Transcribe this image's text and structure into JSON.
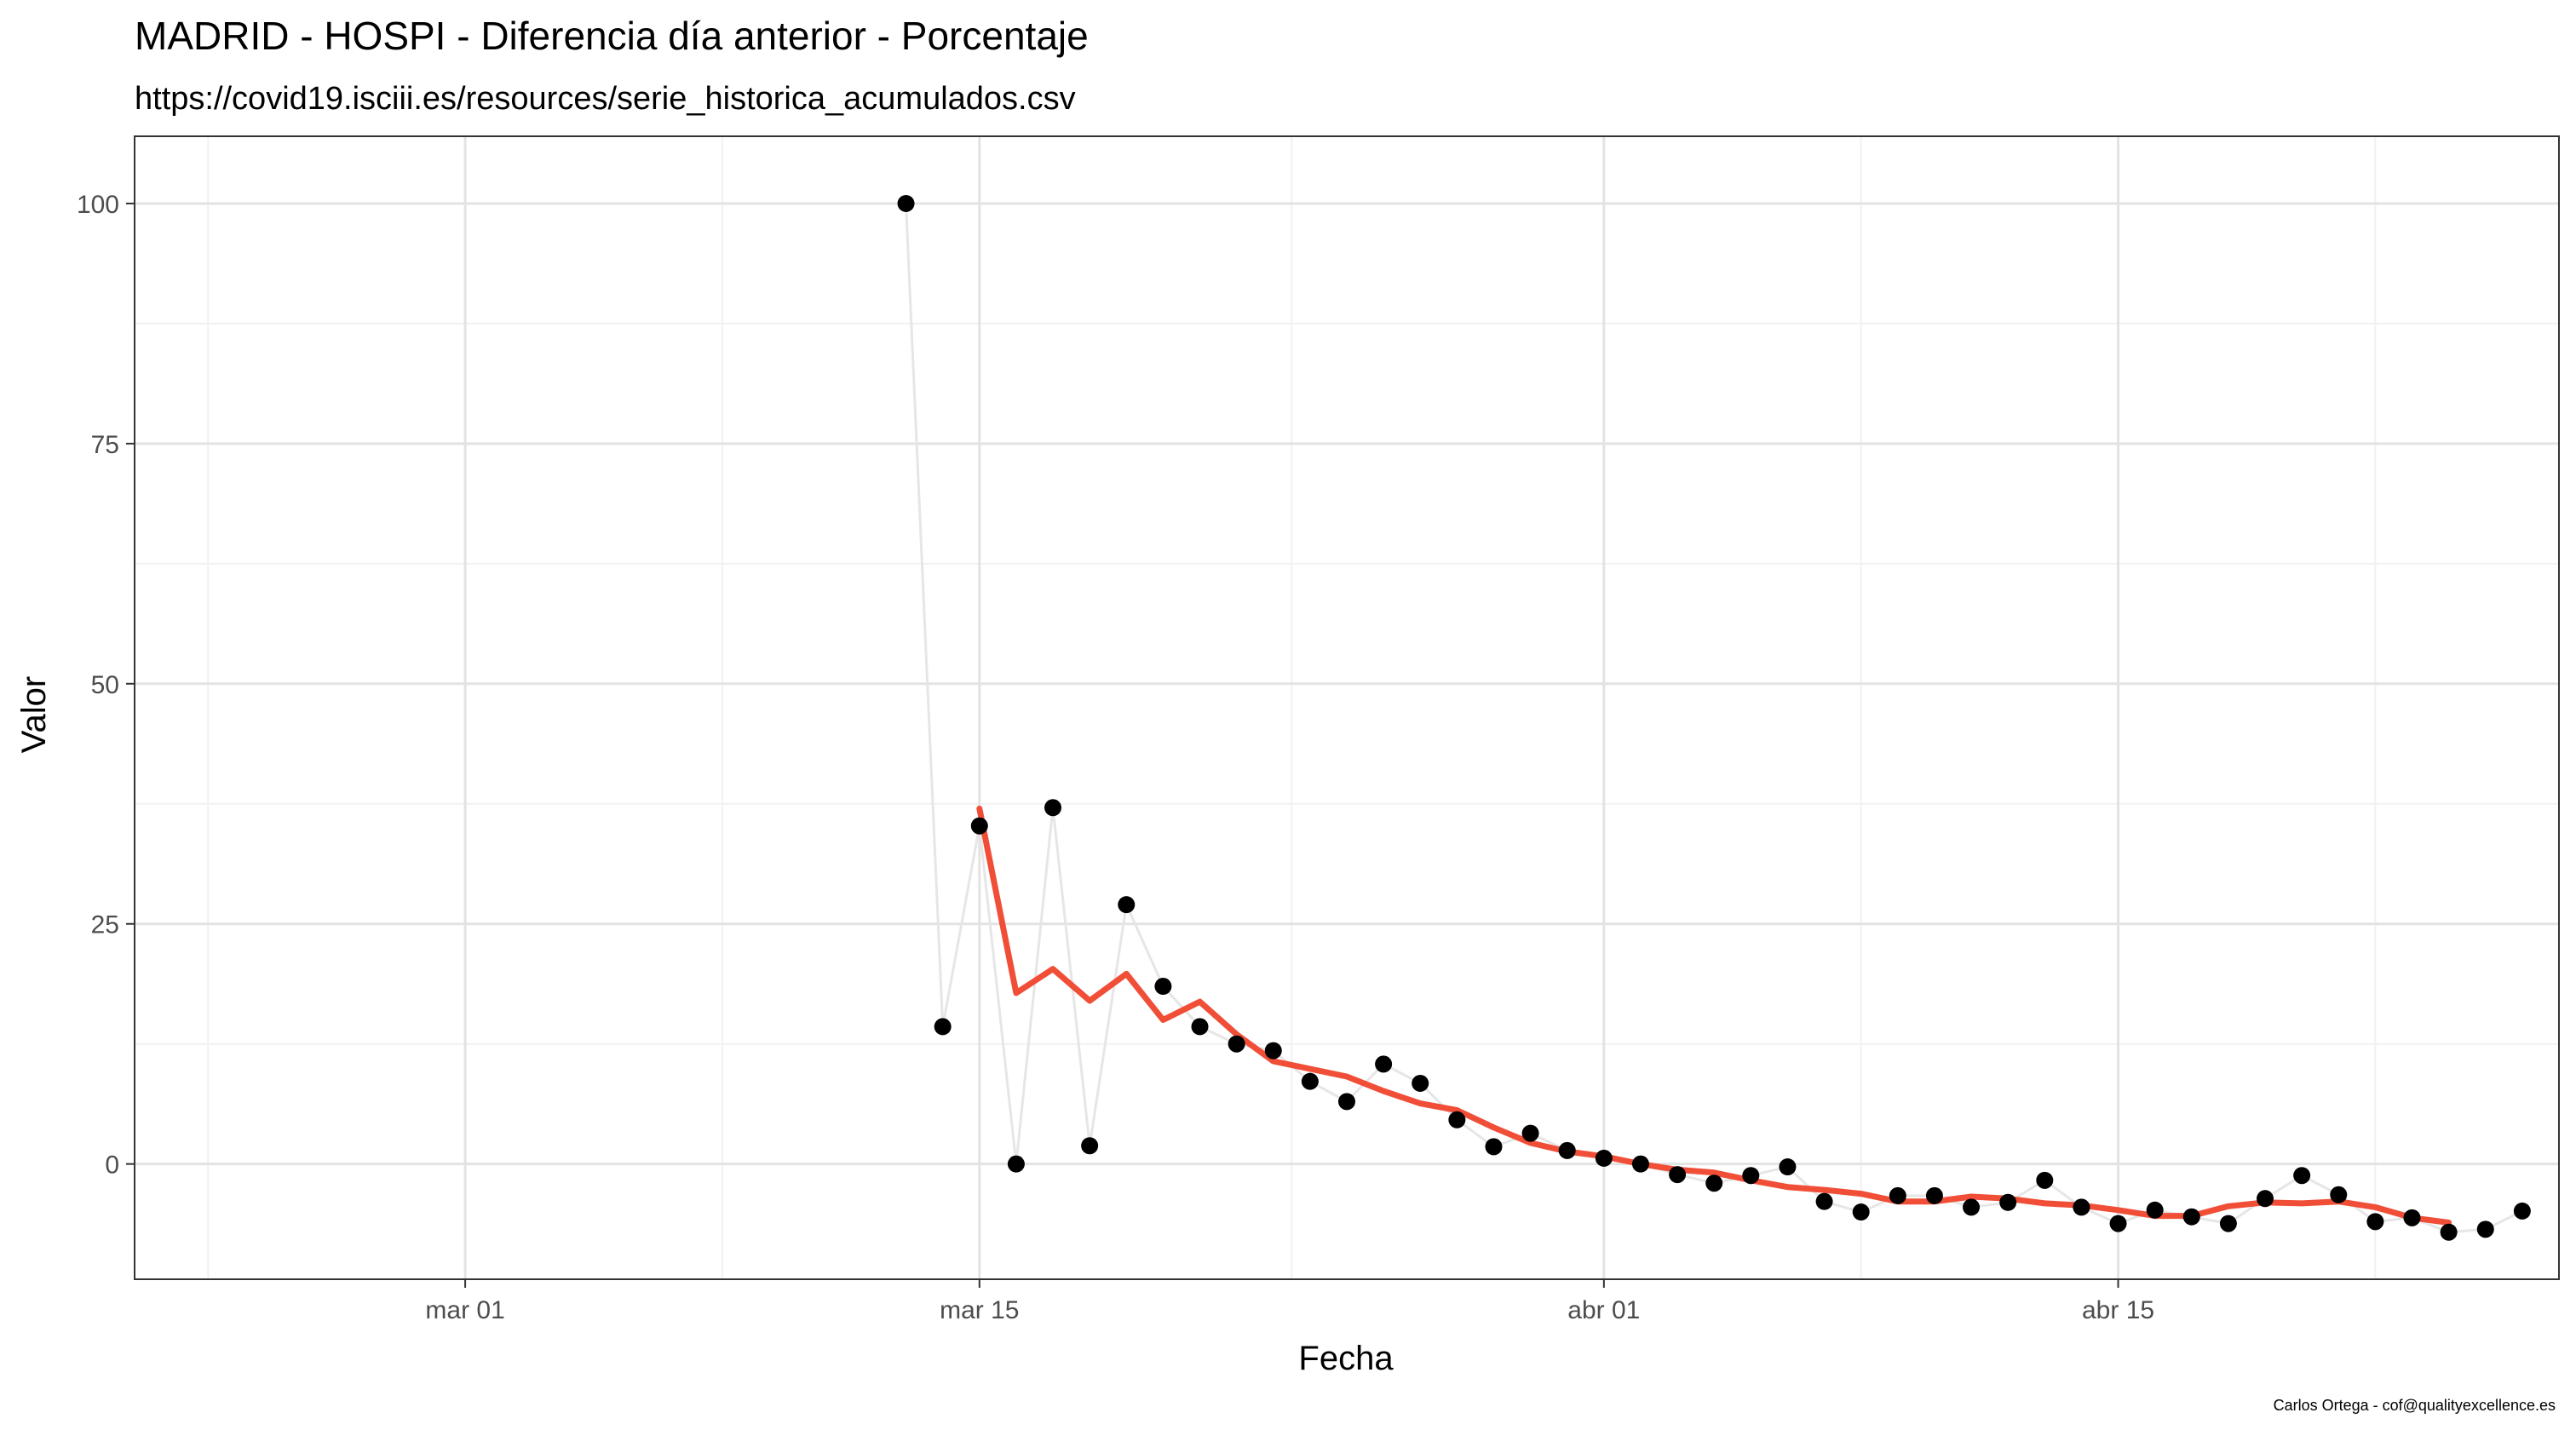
{
  "chart_data": {
    "type": "scatter",
    "title": "MADRID - HOSPI - Diferencia día anterior - Porcentaje",
    "subtitle": "https://covid19.isciii.es/resources/serie_historica_acumulados.csv",
    "xlabel": "Fecha",
    "ylabel": "Valor",
    "caption": "Carlos Ortega - cof@qualityexcellence.es",
    "x_axis": {
      "type": "date",
      "range": [
        "2020-02-21",
        "2020-04-27"
      ],
      "ticks": [
        {
          "date": "2020-03-01",
          "label": "mar 01"
        },
        {
          "date": "2020-03-15",
          "label": "mar 15"
        },
        {
          "date": "2020-04-01",
          "label": "abr 01"
        },
        {
          "date": "2020-04-15",
          "label": "abr 15"
        }
      ]
    },
    "y_axis": {
      "range": [
        -12,
        107
      ],
      "ticks": [
        0,
        25,
        50,
        75,
        100
      ]
    },
    "grid": true,
    "colors": {
      "points": "#000000",
      "connecting_line": "#e6e6e6",
      "smooth_line": "#f04e37",
      "grid_major": "#e3e3e3",
      "grid_minor": "#f1f1f1",
      "panel_border": "#333333"
    },
    "series": [
      {
        "role": "points",
        "points": [
          {
            "x": "2020-03-13",
            "y": 100
          },
          {
            "x": "2020-03-14",
            "y": 14.3
          },
          {
            "x": "2020-03-15",
            "y": 35.2
          },
          {
            "x": "2020-03-16",
            "y": 0
          },
          {
            "x": "2020-03-17",
            "y": 37.1
          },
          {
            "x": "2020-03-18",
            "y": 1.9
          },
          {
            "x": "2020-03-19",
            "y": 27.0
          },
          {
            "x": "2020-03-20",
            "y": 18.5
          },
          {
            "x": "2020-03-21",
            "y": 14.3
          },
          {
            "x": "2020-03-22",
            "y": 12.5
          },
          {
            "x": "2020-03-23",
            "y": 11.8
          },
          {
            "x": "2020-03-24",
            "y": 8.6
          },
          {
            "x": "2020-03-25",
            "y": 6.5
          },
          {
            "x": "2020-03-26",
            "y": 10.4
          },
          {
            "x": "2020-03-27",
            "y": 8.4
          },
          {
            "x": "2020-03-28",
            "y": 4.6
          },
          {
            "x": "2020-03-29",
            "y": 1.8
          },
          {
            "x": "2020-03-30",
            "y": 3.2
          },
          {
            "x": "2020-03-31",
            "y": 1.4
          },
          {
            "x": "2020-04-01",
            "y": 0.6
          },
          {
            "x": "2020-04-02",
            "y": 0
          },
          {
            "x": "2020-04-03",
            "y": -1.1
          },
          {
            "x": "2020-04-04",
            "y": -2.0
          },
          {
            "x": "2020-04-05",
            "y": -1.2
          },
          {
            "x": "2020-04-06",
            "y": -0.3
          },
          {
            "x": "2020-04-07",
            "y": -3.9
          },
          {
            "x": "2020-04-08",
            "y": -5.0
          },
          {
            "x": "2020-04-09",
            "y": -3.3
          },
          {
            "x": "2020-04-10",
            "y": -3.3
          },
          {
            "x": "2020-04-11",
            "y": -4.5
          },
          {
            "x": "2020-04-12",
            "y": -4.0
          },
          {
            "x": "2020-04-13",
            "y": -1.7
          },
          {
            "x": "2020-04-14",
            "y": -4.5
          },
          {
            "x": "2020-04-15",
            "y": -6.2
          },
          {
            "x": "2020-04-16",
            "y": -4.8
          },
          {
            "x": "2020-04-17",
            "y": -5.5
          },
          {
            "x": "2020-04-18",
            "y": -6.2
          },
          {
            "x": "2020-04-19",
            "y": -3.6
          },
          {
            "x": "2020-04-20",
            "y": -1.2
          },
          {
            "x": "2020-04-21",
            "y": -3.2
          },
          {
            "x": "2020-04-22",
            "y": -6.0
          },
          {
            "x": "2020-04-23",
            "y": -5.6
          },
          {
            "x": "2020-04-24",
            "y": -7.1
          },
          {
            "x": "2020-04-25",
            "y": -6.8
          },
          {
            "x": "2020-04-26",
            "y": -4.9
          }
        ]
      },
      {
        "role": "smoothed",
        "points": [
          {
            "x": "2020-03-15",
            "y": 37.0
          },
          {
            "x": "2020-03-16",
            "y": 17.8
          },
          {
            "x": "2020-03-17",
            "y": 20.3
          },
          {
            "x": "2020-03-18",
            "y": 17.0
          },
          {
            "x": "2020-03-19",
            "y": 19.8
          },
          {
            "x": "2020-03-20",
            "y": 15.0
          },
          {
            "x": "2020-03-21",
            "y": 16.9
          },
          {
            "x": "2020-03-22",
            "y": 13.5
          },
          {
            "x": "2020-03-23",
            "y": 10.7
          },
          {
            "x": "2020-03-24",
            "y": 9.9
          },
          {
            "x": "2020-03-25",
            "y": 9.1
          },
          {
            "x": "2020-03-26",
            "y": 7.6
          },
          {
            "x": "2020-03-27",
            "y": 6.3
          },
          {
            "x": "2020-03-28",
            "y": 5.6
          },
          {
            "x": "2020-03-29",
            "y": 3.8
          },
          {
            "x": "2020-03-30",
            "y": 2.2
          },
          {
            "x": "2020-03-31",
            "y": 1.3
          },
          {
            "x": "2020-04-01",
            "y": 0.8
          },
          {
            "x": "2020-04-02",
            "y": 0.0
          },
          {
            "x": "2020-04-03",
            "y": -0.6
          },
          {
            "x": "2020-04-04",
            "y": -0.9
          },
          {
            "x": "2020-04-05",
            "y": -1.7
          },
          {
            "x": "2020-04-06",
            "y": -2.4
          },
          {
            "x": "2020-04-07",
            "y": -2.7
          },
          {
            "x": "2020-04-08",
            "y": -3.1
          },
          {
            "x": "2020-04-09",
            "y": -3.9
          },
          {
            "x": "2020-04-10",
            "y": -3.9
          },
          {
            "x": "2020-04-11",
            "y": -3.4
          },
          {
            "x": "2020-04-12",
            "y": -3.6
          },
          {
            "x": "2020-04-13",
            "y": -4.1
          },
          {
            "x": "2020-04-14",
            "y": -4.3
          },
          {
            "x": "2020-04-15",
            "y": -4.8
          },
          {
            "x": "2020-04-16",
            "y": -5.4
          },
          {
            "x": "2020-04-17",
            "y": -5.4
          },
          {
            "x": "2020-04-18",
            "y": -4.4
          },
          {
            "x": "2020-04-19",
            "y": -4.0
          },
          {
            "x": "2020-04-20",
            "y": -4.1
          },
          {
            "x": "2020-04-21",
            "y": -3.9
          },
          {
            "x": "2020-04-22",
            "y": -4.5
          },
          {
            "x": "2020-04-23",
            "y": -5.6
          },
          {
            "x": "2020-04-24",
            "y": -6.1
          }
        ]
      }
    ]
  }
}
